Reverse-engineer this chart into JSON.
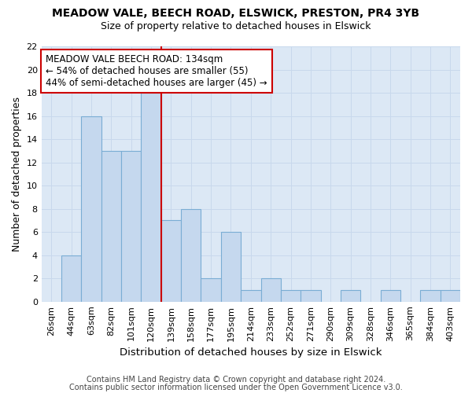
{
  "title_line1": "MEADOW VALE, BEECH ROAD, ELSWICK, PRESTON, PR4 3YB",
  "title_line2": "Size of property relative to detached houses in Elswick",
  "xlabel": "Distribution of detached houses by size in Elswick",
  "ylabel": "Number of detached properties",
  "categories": [
    "26sqm",
    "44sqm",
    "63sqm",
    "82sqm",
    "101sqm",
    "120sqm",
    "139sqm",
    "158sqm",
    "177sqm",
    "195sqm",
    "214sqm",
    "233sqm",
    "252sqm",
    "271sqm",
    "290sqm",
    "309sqm",
    "328sqm",
    "346sqm",
    "365sqm",
    "384sqm",
    "403sqm"
  ],
  "values": [
    0,
    4,
    16,
    13,
    13,
    18,
    7,
    8,
    2,
    6,
    1,
    2,
    1,
    1,
    0,
    1,
    0,
    1,
    0,
    1,
    1
  ],
  "bar_color": "#c5d8ee",
  "bar_edge_color": "#7aadd4",
  "vline_index": 5.5,
  "vline_color": "#cc0000",
  "annotation_line1": "MEADOW VALE BEECH ROAD: 134sqm",
  "annotation_line2": "← 54% of detached houses are smaller (55)",
  "annotation_line3": "44% of semi-detached houses are larger (45) →",
  "annotation_box_facecolor": "#ffffff",
  "annotation_box_edgecolor": "#cc0000",
  "ylim": [
    0,
    22
  ],
  "yticks": [
    0,
    2,
    4,
    6,
    8,
    10,
    12,
    14,
    16,
    18,
    20,
    22
  ],
  "grid_color": "#c8d8ec",
  "bg_color": "#dce8f5",
  "fig_bg_color": "#ffffff",
  "footer_line1": "Contains HM Land Registry data © Crown copyright and database right 2024.",
  "footer_line2": "Contains public sector information licensed under the Open Government Licence v3.0.",
  "title1_fontsize": 10,
  "title2_fontsize": 9,
  "ylabel_fontsize": 9,
  "xlabel_fontsize": 9.5,
  "tick_fontsize": 8,
  "footer_fontsize": 7,
  "annot_fontsize": 8.5
}
